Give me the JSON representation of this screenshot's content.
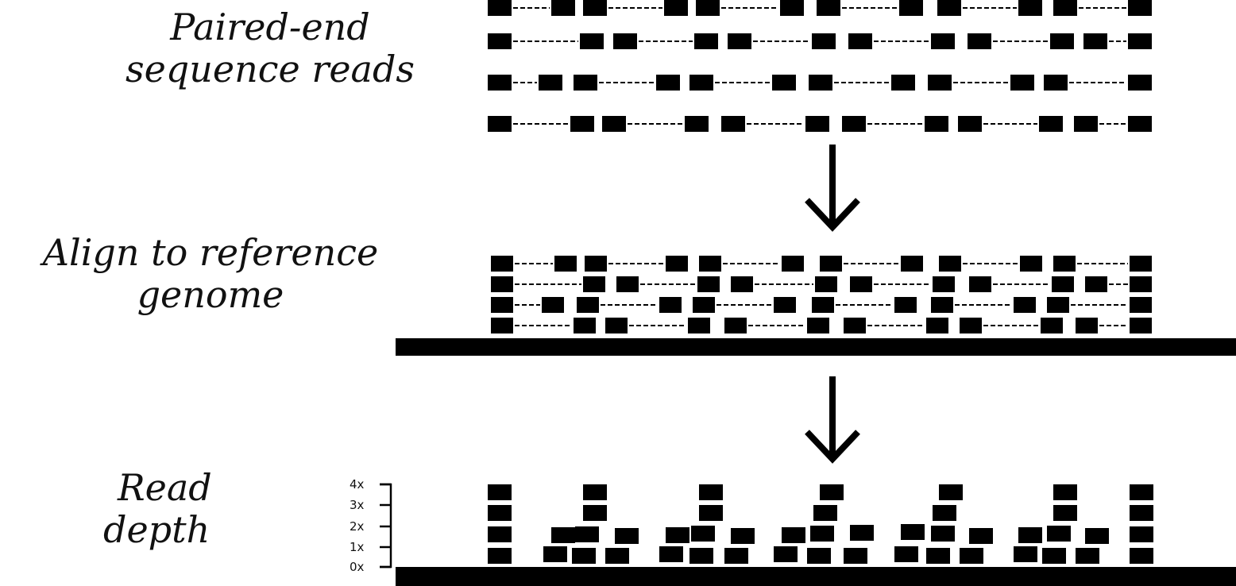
{
  "labels": {
    "reads_line1": "Paired-end",
    "reads_line2": "sequence reads",
    "align_line1": "Align to reference",
    "align_line2": "genome",
    "depth_line1": "Read",
    "depth_line2": "depth"
  },
  "depth_axis": {
    "ticks": [
      "0x",
      "1x",
      "2x",
      "3x",
      "4x"
    ]
  },
  "colors": {
    "ink": "#000000",
    "background": "#ffffff"
  },
  "icons": {
    "arrow_1": "down-arrow-icon",
    "arrow_2": "down-arrow-icon"
  }
}
